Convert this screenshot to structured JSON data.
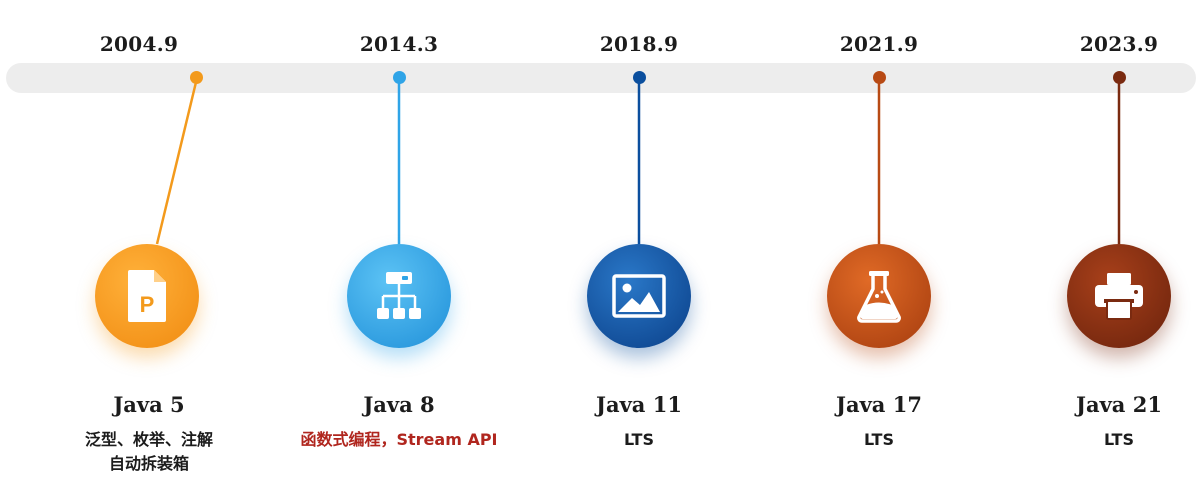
{
  "colors": {
    "track": "#ededed",
    "java5": "#f39a1c",
    "java8": "#2fa4e7",
    "java11": "#0b4f9e",
    "java17": "#b84a14",
    "java21": "#7a2a10",
    "highlight_text": "#b0261e"
  },
  "milestones": [
    {
      "date": "2004.9",
      "title": "Java 5",
      "desc_lines": [
        "泛型、枚举、注解",
        "自动拆装箱"
      ],
      "icon": "document-p-icon"
    },
    {
      "date": "2014.3",
      "title": "Java 8",
      "desc_lines": [
        "函数式编程，Stream API"
      ],
      "icon": "hierarchy-icon",
      "desc_highlight": true
    },
    {
      "date": "2018.9",
      "title": "Java 11",
      "desc_lines": [
        "LTS"
      ],
      "icon": "image-icon"
    },
    {
      "date": "2021.9",
      "title": "Java 17",
      "desc_lines": [
        "LTS"
      ],
      "icon": "flask-icon"
    },
    {
      "date": "2023.9",
      "title": "Java 21",
      "desc_lines": [
        "LTS"
      ],
      "icon": "printer-icon"
    }
  ]
}
